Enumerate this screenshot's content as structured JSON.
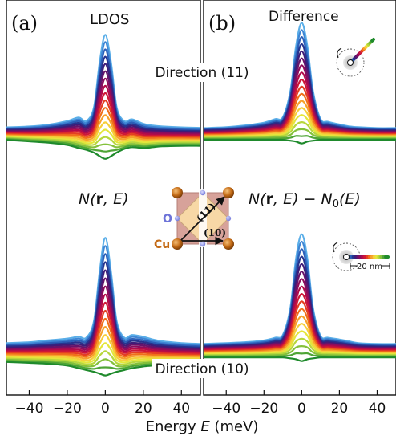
{
  "chart_data": [
    {
      "type": "line",
      "panel_letter": "(a)",
      "title": "LDOS",
      "formula": {
        "prefix": "N(",
        "bold": "r",
        "suffix": ", E)"
      },
      "x": [
        -52,
        -40,
        -30,
        -20,
        -14,
        -10,
        -6,
        -3,
        0,
        3,
        6,
        10,
        14,
        20,
        25,
        30,
        40,
        50
      ],
      "xlim": [
        -52,
        50
      ],
      "xticks": [
        "−40",
        "−20",
        "0",
        "20",
        "40"
      ],
      "groups": [
        {
          "label": "Direction (11)",
          "n_curves": 18,
          "top_curve": [
            56,
            58,
            62,
            70,
            78,
            70,
            100,
            200,
            262,
            200,
            100,
            70,
            74,
            64,
            60,
            58,
            56,
            55
          ],
          "bottom_curve": [
            28,
            25,
            22,
            17,
            10,
            6,
            0,
            -8,
            -14,
            -8,
            0,
            8,
            12,
            10,
            12,
            14,
            15,
            15
          ]
        },
        {
          "label": "Direction (10)",
          "n_curves": 18,
          "top_curve": [
            62,
            64,
            68,
            72,
            76,
            74,
            110,
            220,
            296,
            220,
            110,
            74,
            80,
            76,
            70,
            66,
            62,
            60
          ],
          "bottom_curve": [
            20,
            18,
            16,
            12,
            6,
            2,
            -2,
            -6,
            -10,
            -6,
            -2,
            2,
            6,
            10,
            12,
            14,
            15,
            15
          ]
        }
      ]
    },
    {
      "type": "line",
      "panel_letter": "(b)",
      "title": "Difference",
      "formula": {
        "prefix": "N(",
        "bold": "r",
        "suffix": ", E) − N",
        "sub": "0",
        "tail": "(E)"
      },
      "x": [
        -52,
        -40,
        -30,
        -20,
        -14,
        -10,
        -6,
        -3,
        0,
        3,
        6,
        10,
        14,
        20,
        25,
        30,
        40,
        50
      ],
      "xlim": [
        -52,
        50
      ],
      "xticks": [
        "−40",
        "−20",
        "0",
        "20",
        "40"
      ],
      "groups": [
        {
          "n_curves": 18,
          "top_curve": [
            58,
            60,
            64,
            70,
            78,
            82,
            140,
            240,
            292,
            240,
            140,
            78,
            72,
            66,
            62,
            60,
            58,
            58
          ],
          "bottom_curve": [
            32,
            32,
            32,
            32,
            32,
            32,
            30,
            28,
            24,
            28,
            30,
            32,
            32,
            32,
            32,
            32,
            32,
            32
          ]
        },
        {
          "n_curves": 18,
          "top_curve": [
            60,
            62,
            64,
            68,
            74,
            80,
            140,
            250,
            304,
            250,
            140,
            78,
            74,
            70,
            66,
            62,
            60,
            60
          ],
          "bottom_curve": [
            30,
            30,
            30,
            30,
            30,
            30,
            28,
            26,
            22,
            26,
            28,
            30,
            30,
            30,
            30,
            30,
            30,
            30
          ]
        }
      ]
    }
  ],
  "figure": {
    "xlabel_prefix": "Energy ",
    "xlabel_var": "E",
    "xlabel_suffix": " (meV)",
    "colors": [
      "#5aaee8",
      "#3f86d4",
      "#2b5fb8",
      "#26348e",
      "#3f1c78",
      "#68136a",
      "#8e0c5c",
      "#b20b4a",
      "#cf1837",
      "#e43f22",
      "#f0701a",
      "#f7a12a",
      "#f6cf3a",
      "#e4e63b",
      "#b7d73c",
      "#84c13b",
      "#4ea536",
      "#1f8a2c"
    ],
    "scale_text": "20 nm"
  },
  "lattice": {
    "label_11": "(11)",
    "label_10": "(10)",
    "o_label": "O",
    "cu_label": "Cu"
  }
}
